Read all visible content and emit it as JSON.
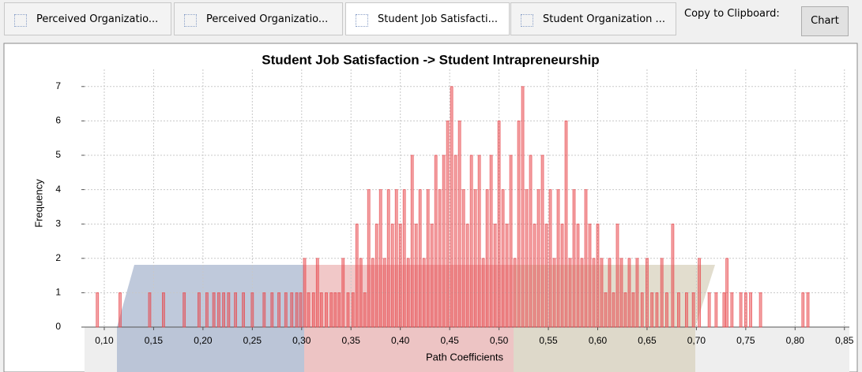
{
  "tabs": [
    "Perceived Organizatio...",
    "Perceived Organizatio...",
    "Student Job Satisfacti...",
    "Student Organization ..."
  ],
  "copy_label": "Copy to Clipboard:",
  "button": "Chart",
  "chart_data": {
    "type": "bar",
    "title": "Student Job Satisfaction -> Student Intrapreneurship",
    "xlabel": "Path Coefficients",
    "ylabel": "Frequency",
    "color": "#e8474c",
    "grid": true,
    "xlim": [
      0.08,
      0.855
    ],
    "ylim": [
      0,
      7.5
    ],
    "yticks": [
      0,
      1,
      2,
      3,
      4,
      5,
      6,
      7
    ],
    "xticks": [
      {
        "value": 0.1,
        "label": "0,10"
      },
      {
        "value": 0.15,
        "label": "0,15"
      },
      {
        "value": 0.2,
        "label": "0,20"
      },
      {
        "value": 0.25,
        "label": "0,25"
      },
      {
        "value": 0.3,
        "label": "0,30"
      },
      {
        "value": 0.35,
        "label": "0,35"
      },
      {
        "value": 0.4,
        "label": "0,40"
      },
      {
        "value": 0.45,
        "label": "0,45"
      },
      {
        "value": 0.5,
        "label": "0,50"
      },
      {
        "value": 0.55,
        "label": "0,55"
      },
      {
        "value": 0.6,
        "label": "0,60"
      },
      {
        "value": 0.65,
        "label": "0,65"
      },
      {
        "value": 0.7,
        "label": "0,70"
      },
      {
        "value": 0.75,
        "label": "0,75"
      },
      {
        "value": 0.8,
        "label": "0,80"
      },
      {
        "value": 0.85,
        "label": "0,85"
      }
    ],
    "x": [
      0.093,
      0.116,
      0.146,
      0.16,
      0.181,
      0.196,
      0.204,
      0.211,
      0.216,
      0.221,
      0.226,
      0.233,
      0.241,
      0.25,
      0.262,
      0.27,
      0.277,
      0.284,
      0.29,
      0.295,
      0.299,
      0.303,
      0.307,
      0.312,
      0.316,
      0.32,
      0.325,
      0.33,
      0.334,
      0.338,
      0.342,
      0.347,
      0.352,
      0.356,
      0.36,
      0.364,
      0.368,
      0.372,
      0.376,
      0.38,
      0.384,
      0.388,
      0.392,
      0.396,
      0.4,
      0.404,
      0.408,
      0.412,
      0.416,
      0.42,
      0.424,
      0.428,
      0.432,
      0.436,
      0.44,
      0.444,
      0.448,
      0.452,
      0.456,
      0.46,
      0.464,
      0.468,
      0.472,
      0.476,
      0.48,
      0.484,
      0.488,
      0.492,
      0.496,
      0.5,
      0.504,
      0.508,
      0.512,
      0.516,
      0.52,
      0.524,
      0.528,
      0.532,
      0.536,
      0.54,
      0.544,
      0.548,
      0.552,
      0.556,
      0.56,
      0.564,
      0.568,
      0.572,
      0.576,
      0.58,
      0.584,
      0.588,
      0.592,
      0.596,
      0.6,
      0.604,
      0.608,
      0.612,
      0.616,
      0.62,
      0.624,
      0.628,
      0.632,
      0.636,
      0.64,
      0.645,
      0.65,
      0.655,
      0.66,
      0.665,
      0.67,
      0.676,
      0.682,
      0.69,
      0.697,
      0.703,
      0.713,
      0.72,
      0.728,
      0.731,
      0.736,
      0.745,
      0.75,
      0.755,
      0.765,
      0.808,
      0.813
    ],
    "values": [
      1,
      1,
      1,
      1,
      1,
      1,
      1,
      1,
      1,
      1,
      1,
      1,
      1,
      1,
      1,
      1,
      1,
      1,
      1,
      1,
      1,
      2,
      1,
      1,
      2,
      1,
      1,
      1,
      1,
      1,
      2,
      1,
      1,
      3,
      2,
      1,
      4,
      2,
      3,
      4,
      2,
      4,
      3,
      4,
      3,
      4,
      2,
      5,
      3,
      4,
      2,
      4,
      3,
      5,
      4,
      5,
      6,
      7,
      5,
      6,
      4,
      3,
      5,
      4,
      5,
      2,
      4,
      5,
      3,
      6,
      4,
      3,
      5,
      2,
      6,
      7,
      4,
      5,
      3,
      4,
      5,
      3,
      4,
      2,
      4,
      3,
      6,
      2,
      4,
      3,
      2,
      4,
      3,
      2,
      3,
      2,
      1,
      2,
      1,
      3,
      2,
      1,
      2,
      1,
      2,
      1,
      2,
      1,
      1,
      2,
      1,
      3,
      1,
      1,
      1,
      2,
      1,
      1,
      1,
      2,
      1,
      1,
      1,
      1,
      1,
      1,
      1
    ]
  }
}
